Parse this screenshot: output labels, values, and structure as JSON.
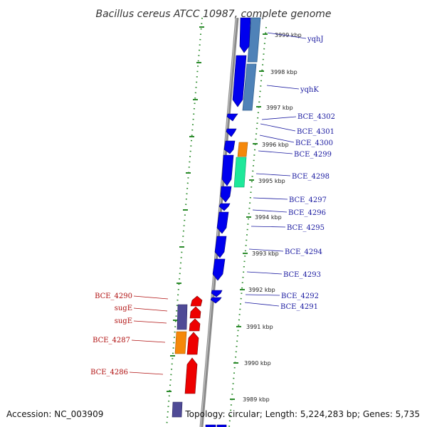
{
  "title": "Bacillus cereus ATCC 10987, complete genome",
  "accession_text": "Accession: NC_003909",
  "topology_text": "Topology: circular; Length: 5,224,283 bp; Genes: 5,735",
  "colors": {
    "forward_cds": "#0000ee",
    "reverse_cds": "#ee0000",
    "rna_steel": "#4f82b8",
    "rna_orange": "#f5880a",
    "rna_green": "#1ee89a",
    "rna_purple": "#4f4a96",
    "backbone": "#8a8a8a",
    "ruler": "#2a8a2a",
    "label_forward": "#1a1aa0",
    "label_reverse": "#b01010"
  },
  "ticks": [
    {
      "id": "3999",
      "label": "3999 kbp"
    },
    {
      "id": "3998",
      "label": "3998 kbp"
    },
    {
      "id": "3997",
      "label": "3997 kbp"
    },
    {
      "id": "3996",
      "label": "3996 kbp"
    },
    {
      "id": "3995",
      "label": "3995 kbp"
    },
    {
      "id": "3994",
      "label": "3994 kbp"
    },
    {
      "id": "3993",
      "label": "3993 kbp"
    },
    {
      "id": "3992",
      "label": "3992 kbp"
    },
    {
      "id": "3991",
      "label": "3991 kbp"
    },
    {
      "id": "3990",
      "label": "3990 kbp"
    },
    {
      "id": "3989",
      "label": "3989 kbp"
    }
  ],
  "forward_labels": [
    {
      "id": "yqhJ",
      "text": "yqhJ"
    },
    {
      "id": "yqhK",
      "text": "yqhK"
    },
    {
      "id": "bce4302",
      "text": "BCE_4302"
    },
    {
      "id": "bce4301",
      "text": "BCE_4301"
    },
    {
      "id": "bce4300",
      "text": "BCE_4300"
    },
    {
      "id": "bce4299",
      "text": "BCE_4299"
    },
    {
      "id": "bce4298",
      "text": "BCE_4298"
    },
    {
      "id": "bce4297",
      "text": "BCE_4297"
    },
    {
      "id": "bce4296",
      "text": "BCE_4296"
    },
    {
      "id": "bce4295",
      "text": "BCE_4295"
    },
    {
      "id": "bce4294",
      "text": "BCE_4294"
    },
    {
      "id": "bce4293",
      "text": "BCE_4293"
    },
    {
      "id": "bce4292",
      "text": "BCE_4292"
    },
    {
      "id": "bce4291",
      "text": "BCE_4291"
    }
  ],
  "reverse_labels": [
    {
      "id": "bce4290",
      "text": "BCE_4290"
    },
    {
      "id": "sugE1",
      "text": "sugE"
    },
    {
      "id": "sugE2",
      "text": "sugE"
    },
    {
      "id": "bce4287",
      "text": "BCE_4287"
    },
    {
      "id": "bce4286",
      "text": "BCE_4286"
    }
  ]
}
